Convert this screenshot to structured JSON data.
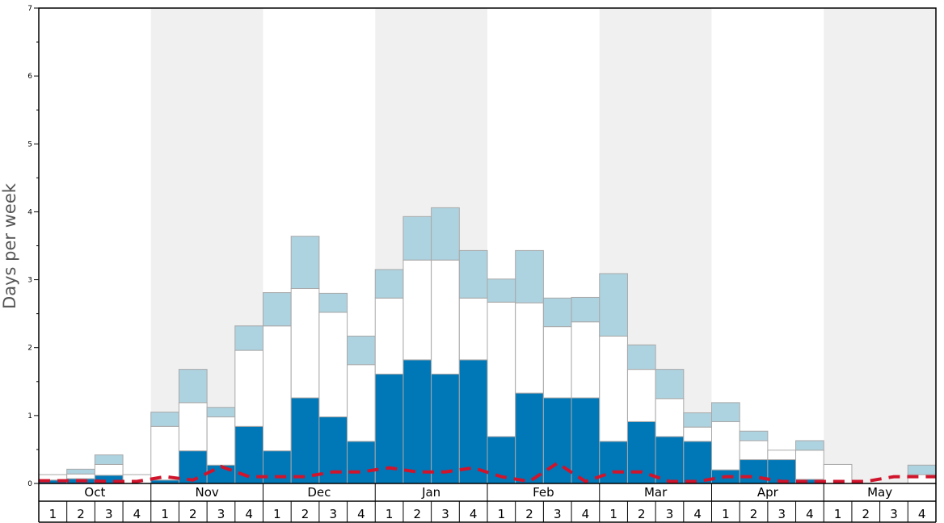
{
  "chart_data": {
    "type": "bar",
    "ylabel": "Days per week",
    "ylim": [
      0,
      7
    ],
    "yticks": [
      0,
      1,
      2,
      3,
      4,
      5,
      6,
      7
    ],
    "months": [
      "Oct",
      "Nov",
      "Dec",
      "Jan",
      "Feb",
      "Mar",
      "Apr",
      "May"
    ],
    "weeks": [
      "1",
      "2",
      "3",
      "4"
    ],
    "categories": [
      "Oct 1",
      "Oct 2",
      "Oct 3",
      "Oct 4",
      "Nov 1",
      "Nov 2",
      "Nov 3",
      "Nov 4",
      "Dec 1",
      "Dec 2",
      "Dec 3",
      "Dec 4",
      "Jan 1",
      "Jan 2",
      "Jan 3",
      "Jan 4",
      "Feb 1",
      "Feb 2",
      "Feb 3",
      "Feb 4",
      "Mar 1",
      "Mar 2",
      "Mar 3",
      "Mar 4",
      "Apr 1",
      "Apr 2",
      "Apr 3",
      "Apr 4",
      "May 1",
      "May 2",
      "May 3",
      "May 4"
    ],
    "series": [
      {
        "color": "#0077b6",
        "values": [
          0.05,
          0.07,
          0.12,
          0.0,
          0.05,
          0.48,
          0.27,
          0.84,
          0.48,
          1.26,
          0.98,
          0.62,
          1.61,
          1.82,
          1.61,
          1.82,
          0.69,
          1.33,
          1.26,
          1.26,
          0.62,
          0.91,
          0.69,
          0.62,
          0.2,
          0.35,
          0.35,
          0.06,
          0.0,
          0.0,
          0.0,
          0.0
        ]
      },
      {
        "color": "#ffffff",
        "values": [
          0.08,
          0.07,
          0.16,
          0.13,
          0.79,
          0.71,
          0.71,
          1.12,
          1.84,
          1.61,
          1.54,
          1.13,
          1.12,
          1.47,
          1.68,
          0.91,
          1.98,
          1.33,
          1.05,
          1.12,
          1.55,
          0.77,
          0.56,
          0.21,
          0.71,
          0.28,
          0.14,
          0.43,
          0.28,
          0.0,
          0.0,
          0.13
        ]
      },
      {
        "color": "#aed3e0",
        "values": [
          0.0,
          0.07,
          0.14,
          0.0,
          0.21,
          0.49,
          0.14,
          0.36,
          0.49,
          0.77,
          0.28,
          0.42,
          0.42,
          0.64,
          0.77,
          0.7,
          0.34,
          0.77,
          0.42,
          0.36,
          0.92,
          0.36,
          0.43,
          0.21,
          0.28,
          0.14,
          0.0,
          0.14,
          0.0,
          0.0,
          0.0,
          0.14
        ]
      }
    ],
    "average_line": {
      "color": "#d0142c",
      "style": "dashed",
      "values": [
        0.04,
        0.04,
        0.03,
        0.03,
        0.1,
        0.05,
        0.25,
        0.1,
        0.1,
        0.1,
        0.17,
        0.17,
        0.23,
        0.17,
        0.17,
        0.23,
        0.1,
        0.03,
        0.3,
        0.03,
        0.17,
        0.17,
        0.03,
        0.03,
        0.1,
        0.1,
        0.03,
        0.03,
        0.03,
        0.03,
        0.1,
        0.1
      ]
    },
    "month_band_colors": [
      "#ffffff",
      "#f0f0f0"
    ],
    "grid": false
  }
}
